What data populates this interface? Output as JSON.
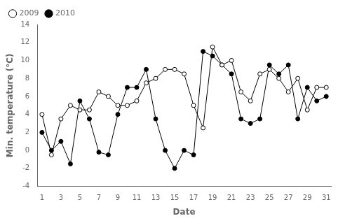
{
  "chart_data": {
    "type": "line",
    "x": [
      1,
      2,
      3,
      4,
      5,
      6,
      7,
      8,
      9,
      10,
      11,
      12,
      13,
      14,
      15,
      16,
      17,
      18,
      19,
      20,
      21,
      22,
      23,
      24,
      25,
      26,
      27,
      28,
      29,
      30,
      31
    ],
    "series": [
      {
        "name": "2009",
        "color": "black",
        "marker": "open_circle",
        "values": [
          4,
          -0.5,
          3.5,
          5,
          4.5,
          4.5,
          6.5,
          6,
          5,
          5,
          5.5,
          7.5,
          8,
          9,
          9,
          8.5,
          5,
          2.5,
          11.5,
          9.5,
          10,
          6.5,
          5.5,
          8.5,
          9,
          8,
          6.5,
          8,
          4.5,
          7,
          7
        ]
      },
      {
        "name": "2010",
        "color": "black",
        "marker": "circle",
        "values": [
          2,
          0,
          1,
          -1.5,
          5.5,
          3.5,
          -0.2,
          -0.5,
          4,
          7,
          7,
          9,
          3.5,
          0,
          -2,
          0,
          -0.5,
          11,
          10.5,
          9.5,
          8.5,
          3.5,
          3,
          3.5,
          9.5,
          8.5,
          9.5,
          3.5,
          7,
          5.5,
          6
        ]
      }
    ],
    "xlabel": "Date",
    "ylabel": "Min. temperature (°C)",
    "xlim": [
      0.5,
      31.5
    ],
    "ylim": [
      -4,
      14
    ],
    "xticks": [
      1,
      3,
      5,
      7,
      9,
      11,
      13,
      15,
      17,
      19,
      21,
      23,
      25,
      27,
      29,
      31
    ],
    "yticks": [
      -4,
      -2,
      0,
      2,
      4,
      6,
      8,
      10,
      12,
      14
    ],
    "grid": false,
    "legend": "upper left"
  }
}
